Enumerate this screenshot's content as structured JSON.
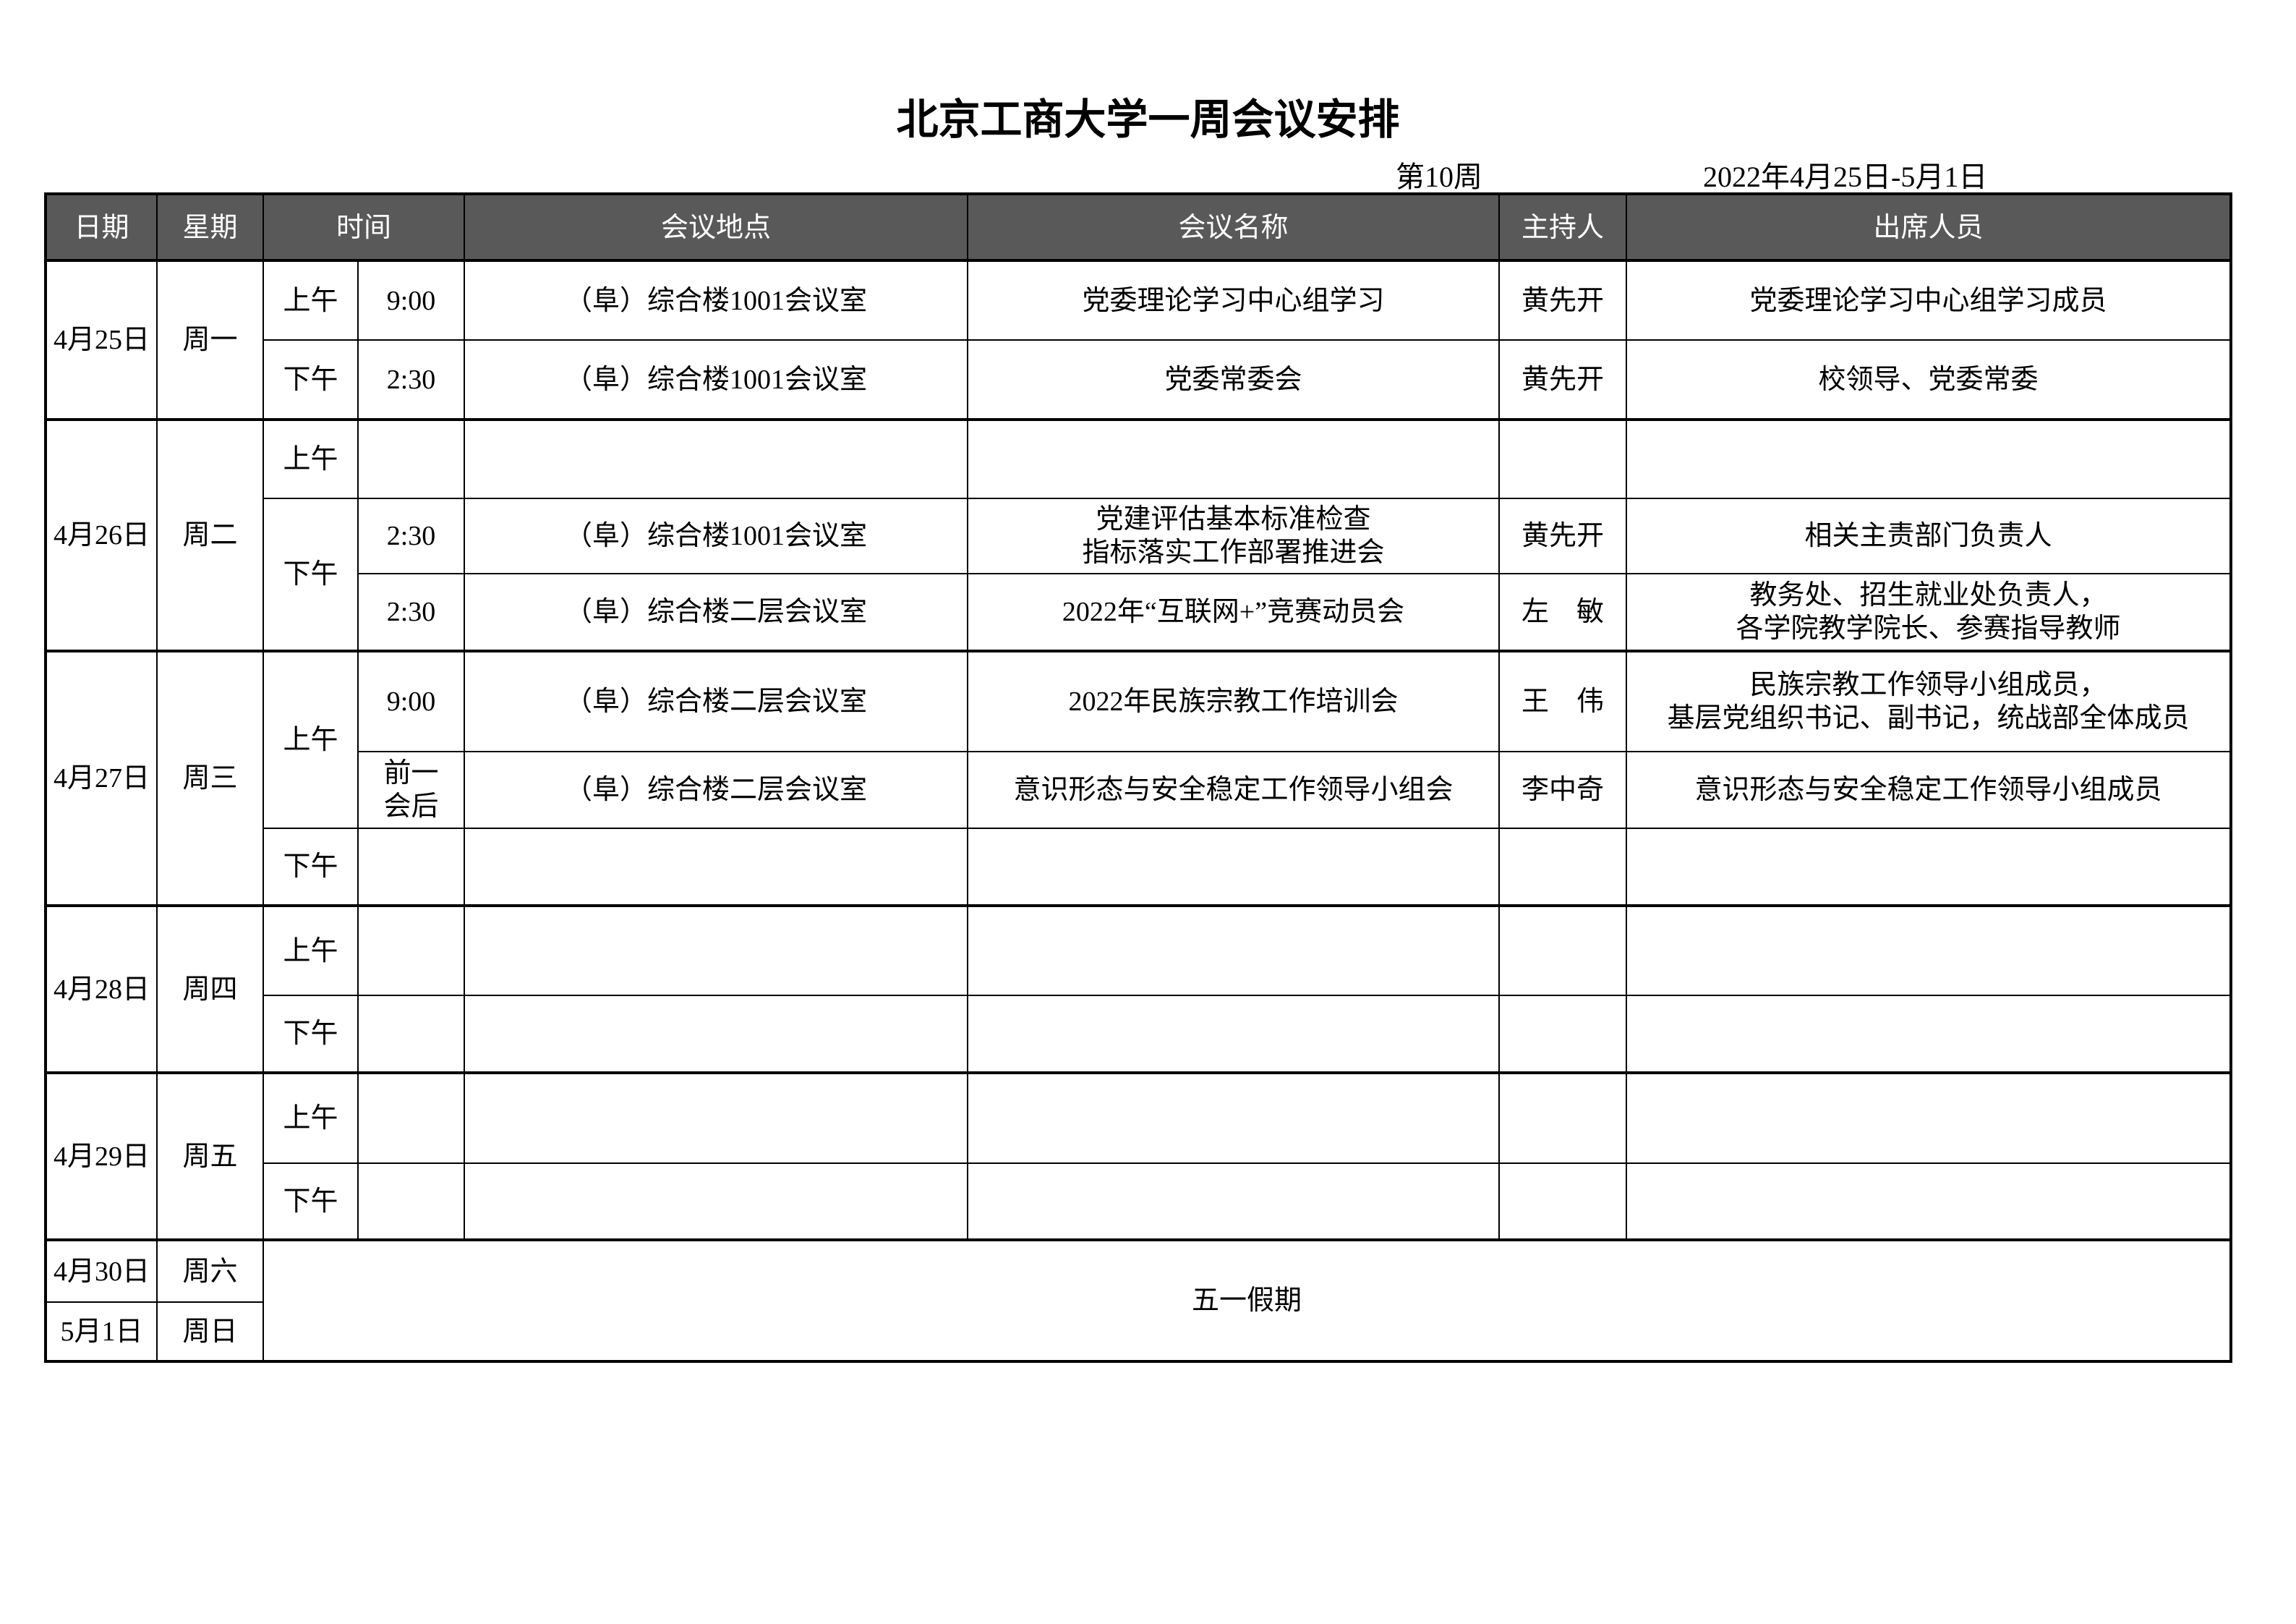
{
  "title": "北京工商大学一周会议安排",
  "week": "第10周",
  "date_range": "2022年4月25日-5月1日",
  "colors": {
    "header_bg": "#595959",
    "header_text": "#ffffff"
  },
  "headers": [
    "日期",
    "星期",
    "时间",
    "会议地点",
    "会议名称",
    "主持人",
    "出席人员"
  ],
  "days": [
    {
      "date": "4月25日",
      "weekday": "周一",
      "periods": [
        {
          "period": "上午",
          "meetings": [
            {
              "time": "9:00",
              "location": "（阜）综合楼1001会议室",
              "name": "党委理论学习中心组学习",
              "host": "黄先开",
              "attendees": "党委理论学习中心组学习成员"
            }
          ]
        },
        {
          "period": "下午",
          "meetings": [
            {
              "time": "2:30",
              "location": "（阜）综合楼1001会议室",
              "name": "党委常委会",
              "host": "黄先开",
              "attendees": "校领导、党委常委"
            }
          ]
        }
      ]
    },
    {
      "date": "4月26日",
      "weekday": "周二",
      "periods": [
        {
          "period": "上午",
          "meetings": [
            {
              "time": "",
              "location": "",
              "name": "",
              "host": "",
              "attendees": ""
            }
          ]
        },
        {
          "period": "下午",
          "meetings": [
            {
              "time": "2:30",
              "location": "（阜）综合楼1001会议室",
              "name": "党建评估基本标准检查\n指标落实工作部署推进会",
              "host": "黄先开",
              "attendees": "相关主责部门负责人"
            },
            {
              "time": "2:30",
              "location": "（阜）综合楼二层会议室",
              "name": "2022年“互联网+”竞赛动员会",
              "host": "左　敏",
              "attendees": "教务处、招生就业处负责人，\n各学院教学院长、参赛指导教师"
            }
          ]
        }
      ]
    },
    {
      "date": "4月27日",
      "weekday": "周三",
      "periods": [
        {
          "period": "上午",
          "meetings": [
            {
              "time": "9:00",
              "location": "（阜）综合楼二层会议室",
              "name": "2022年民族宗教工作培训会",
              "host": "王　伟",
              "attendees": "民族宗教工作领导小组成员，\n基层党组织书记、副书记，统战部全体成员"
            },
            {
              "time": "前一\n会后",
              "location": "（阜）综合楼二层会议室",
              "name": "意识形态与安全稳定工作领导小组会",
              "host": "李中奇",
              "attendees": "意识形态与安全稳定工作领导小组成员"
            }
          ]
        },
        {
          "period": "下午",
          "meetings": [
            {
              "time": "",
              "location": "",
              "name": "",
              "host": "",
              "attendees": ""
            }
          ]
        }
      ]
    },
    {
      "date": "4月28日",
      "weekday": "周四",
      "periods": [
        {
          "period": "上午",
          "meetings": [
            {
              "time": "",
              "location": "",
              "name": "",
              "host": "",
              "attendees": ""
            }
          ]
        },
        {
          "period": "下午",
          "meetings": [
            {
              "time": "",
              "location": "",
              "name": "",
              "host": "",
              "attendees": ""
            }
          ]
        }
      ]
    },
    {
      "date": "4月29日",
      "weekday": "周五",
      "periods": [
        {
          "period": "上午",
          "meetings": [
            {
              "time": "",
              "location": "",
              "name": "",
              "host": "",
              "attendees": ""
            }
          ]
        },
        {
          "period": "下午",
          "meetings": [
            {
              "time": "",
              "location": "",
              "name": "",
              "host": "",
              "attendees": ""
            }
          ]
        }
      ]
    }
  ],
  "holiday": {
    "days": [
      {
        "date": "4月30日",
        "weekday": "周六"
      },
      {
        "date": "5月1日",
        "weekday": "周日"
      }
    ],
    "label": "五一假期"
  }
}
